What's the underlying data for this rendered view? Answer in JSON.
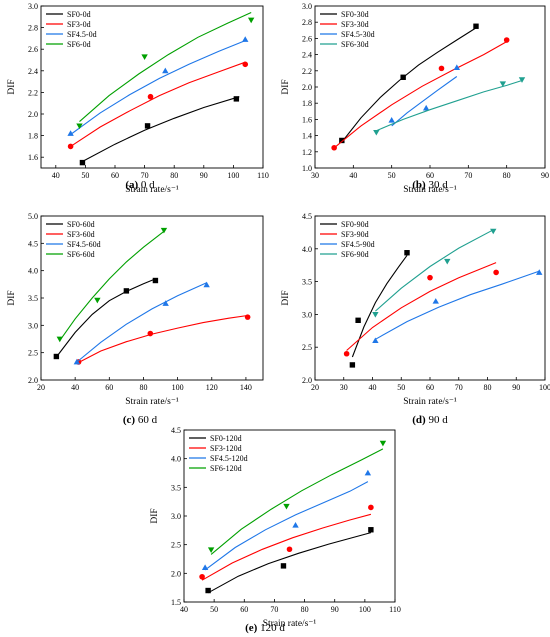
{
  "chart_data": [
    {
      "type": "scatter",
      "caption_label": "(a)",
      "caption_text": "0 d",
      "xlabel": "Strain rate/s⁻¹",
      "ylabel": "DIF",
      "xlim": [
        35,
        110
      ],
      "ylim": [
        1.5,
        3.0
      ],
      "xticks": [
        40,
        50,
        60,
        70,
        80,
        90,
        100,
        110
      ],
      "yticks": [
        1.6,
        1.8,
        2.0,
        2.2,
        2.4,
        2.6,
        2.8,
        3.0
      ],
      "ytick_decimals": 1,
      "legend_position": "top-left",
      "series": [
        {
          "name": "SF0-0d",
          "color": "#000000",
          "marker": "square",
          "points": [
            [
              49,
              1.55
            ],
            [
              71,
              1.89
            ],
            [
              101,
              2.14
            ]
          ],
          "fit": [
            [
              49,
              1.56
            ],
            [
              60,
              1.72
            ],
            [
              70,
              1.85
            ],
            [
              80,
              1.96
            ],
            [
              90,
              2.06
            ],
            [
              102,
              2.16
            ]
          ]
        },
        {
          "name": "SF3-0d",
          "color": "#ff0000",
          "marker": "circle",
          "points": [
            [
              45,
              1.7
            ],
            [
              72,
              2.16
            ],
            [
              104,
              2.46
            ]
          ],
          "fit": [
            [
              45,
              1.7
            ],
            [
              55,
              1.88
            ],
            [
              65,
              2.03
            ],
            [
              75,
              2.17
            ],
            [
              85,
              2.29
            ],
            [
              95,
              2.39
            ],
            [
              104,
              2.48
            ]
          ]
        },
        {
          "name": "SF4.5-0d",
          "color": "#1f77e8",
          "marker": "triangle-up",
          "points": [
            [
              45,
              1.82
            ],
            [
              77,
              2.4
            ],
            [
              104,
              2.69
            ]
          ],
          "fit": [
            [
              45,
              1.81
            ],
            [
              55,
              2.01
            ],
            [
              65,
              2.18
            ],
            [
              75,
              2.33
            ],
            [
              85,
              2.46
            ],
            [
              95,
              2.58
            ],
            [
              104,
              2.68
            ]
          ]
        },
        {
          "name": "SF6-0d",
          "color": "#00a000",
          "marker": "triangle-down",
          "points": [
            [
              48,
              1.89
            ],
            [
              70,
              2.53
            ],
            [
              106,
              2.87
            ]
          ],
          "fit": [
            [
              48,
              1.93
            ],
            [
              58,
              2.17
            ],
            [
              68,
              2.37
            ],
            [
              78,
              2.55
            ],
            [
              88,
              2.71
            ],
            [
              98,
              2.84
            ],
            [
              106,
              2.94
            ]
          ]
        }
      ]
    },
    {
      "type": "scatter",
      "caption_label": "(b)",
      "caption_text": "30 d",
      "xlabel": "Strain rate/s⁻¹",
      "ylabel": "DIF",
      "xlim": [
        30,
        90
      ],
      "ylim": [
        1.0,
        3.0
      ],
      "xticks": [
        30,
        40,
        50,
        60,
        70,
        80,
        90
      ],
      "yticks": [
        1.0,
        1.2,
        1.4,
        1.6,
        1.8,
        2.0,
        2.2,
        2.4,
        2.6,
        2.8,
        3.0
      ],
      "ytick_decimals": 1,
      "legend_position": "top-left",
      "series": [
        {
          "name": "SF0-30d",
          "color": "#000000",
          "marker": "square",
          "points": [
            [
              37,
              1.34
            ],
            [
              53,
              2.12
            ],
            [
              72,
              2.75
            ]
          ],
          "fit": [
            [
              37,
              1.32
            ],
            [
              42,
              1.62
            ],
            [
              47,
              1.87
            ],
            [
              52,
              2.08
            ],
            [
              57,
              2.27
            ],
            [
              62,
              2.43
            ],
            [
              67,
              2.58
            ],
            [
              72,
              2.73
            ]
          ]
        },
        {
          "name": "SF3-30d",
          "color": "#ff0000",
          "marker": "circle",
          "points": [
            [
              35,
              1.25
            ],
            [
              63,
              2.23
            ],
            [
              80,
              2.58
            ]
          ],
          "fit": [
            [
              35,
              1.25
            ],
            [
              42,
              1.52
            ],
            [
              50,
              1.78
            ],
            [
              58,
              2.01
            ],
            [
              66,
              2.21
            ],
            [
              74,
              2.4
            ],
            [
              80,
              2.56
            ]
          ]
        },
        {
          "name": "SF4.5-30d",
          "color": "#1f77e8",
          "marker": "triangle-up",
          "points": [
            [
              50,
              1.59
            ],
            [
              59,
              1.74
            ],
            [
              67,
              2.24
            ]
          ],
          "fit": [
            [
              50,
              1.52
            ],
            [
              54,
              1.68
            ],
            [
              58,
              1.82
            ],
            [
              62,
              1.96
            ],
            [
              67,
              2.13
            ]
          ]
        },
        {
          "name": "SF6-30d",
          "color": "#20a090",
          "marker": "triangle-down",
          "points": [
            [
              46,
              1.44
            ],
            [
              79,
              2.04
            ],
            [
              84,
              2.09
            ]
          ],
          "fit": [
            [
              46,
              1.46
            ],
            [
              53,
              1.6
            ],
            [
              60,
              1.72
            ],
            [
              67,
              1.83
            ],
            [
              74,
              1.94
            ],
            [
              80,
              2.02
            ],
            [
              84,
              2.08
            ]
          ]
        }
      ]
    },
    {
      "type": "scatter",
      "caption_label": "(c)",
      "caption_text": "60 d",
      "xlabel": "Strain rate/s⁻¹",
      "ylabel": "DIF",
      "xlim": [
        20,
        150
      ],
      "ylim": [
        2.0,
        5.0
      ],
      "xticks": [
        20,
        40,
        60,
        80,
        100,
        120,
        140
      ],
      "yticks": [
        2.0,
        2.5,
        3.0,
        3.5,
        4.0,
        4.5,
        5.0
      ],
      "ytick_decimals": 1,
      "legend_position": "top-left",
      "series": [
        {
          "name": "SF0-60d",
          "color": "#000000",
          "marker": "square",
          "points": [
            [
              29,
              2.43
            ],
            [
              70,
              3.63
            ],
            [
              87,
              3.82
            ]
          ],
          "fit": [
            [
              29,
              2.42
            ],
            [
              40,
              2.87
            ],
            [
              50,
              3.2
            ],
            [
              60,
              3.45
            ],
            [
              70,
              3.62
            ],
            [
              80,
              3.76
            ],
            [
              87,
              3.85
            ]
          ]
        },
        {
          "name": "SF3-60d",
          "color": "#ff0000",
          "marker": "circle",
          "points": [
            [
              42,
              2.33
            ],
            [
              84,
              2.85
            ],
            [
              141,
              3.15
            ]
          ],
          "fit": [
            [
              42,
              2.32
            ],
            [
              55,
              2.53
            ],
            [
              70,
              2.7
            ],
            [
              85,
              2.84
            ],
            [
              100,
              2.95
            ],
            [
              115,
              3.05
            ],
            [
              130,
              3.13
            ],
            [
              141,
              3.18
            ]
          ]
        },
        {
          "name": "SF4.5-60d",
          "color": "#1f77e8",
          "marker": "triangle-up",
          "points": [
            [
              41,
              2.33
            ],
            [
              93,
              3.4
            ],
            [
              117,
              3.74
            ]
          ],
          "fit": [
            [
              41,
              2.33
            ],
            [
              55,
              2.69
            ],
            [
              70,
              3.02
            ],
            [
              85,
              3.3
            ],
            [
              100,
              3.54
            ],
            [
              117,
              3.78
            ]
          ]
        },
        {
          "name": "SF6-60d",
          "color": "#00a000",
          "marker": "triangle-down",
          "points": [
            [
              31,
              2.75
            ],
            [
              53,
              3.46
            ],
            [
              92,
              4.74
            ]
          ],
          "fit": [
            [
              31,
              2.72
            ],
            [
              40,
              3.12
            ],
            [
              50,
              3.5
            ],
            [
              60,
              3.85
            ],
            [
              70,
              4.16
            ],
            [
              80,
              4.43
            ],
            [
              92,
              4.72
            ]
          ]
        }
      ]
    },
    {
      "type": "scatter",
      "caption_label": "(d)",
      "caption_text": "90 d",
      "xlabel": "Strain rate/s⁻¹",
      "ylabel": "DIF",
      "xlim": [
        20,
        100
      ],
      "ylim": [
        2.0,
        4.5
      ],
      "xticks": [
        20,
        30,
        40,
        50,
        60,
        70,
        80,
        90,
        100
      ],
      "yticks": [
        2.0,
        2.5,
        3.0,
        3.5,
        4.0,
        4.5
      ],
      "ytick_decimals": 1,
      "legend_position": "top-left",
      "series": [
        {
          "name": "SF0-90d",
          "color": "#000000",
          "marker": "square",
          "points": [
            [
              33,
              2.23
            ],
            [
              35,
              2.91
            ],
            [
              52,
              3.94
            ]
          ],
          "fit": [
            [
              33,
              2.35
            ],
            [
              37,
              2.81
            ],
            [
              41,
              3.18
            ],
            [
              45,
              3.47
            ],
            [
              49,
              3.72
            ],
            [
              52,
              3.9
            ]
          ]
        },
        {
          "name": "SF3-90d",
          "color": "#ff0000",
          "marker": "circle",
          "points": [
            [
              31,
              2.4
            ],
            [
              60,
              3.56
            ],
            [
              83,
              3.64
            ]
          ],
          "fit": [
            [
              31,
              2.45
            ],
            [
              40,
              2.8
            ],
            [
              50,
              3.1
            ],
            [
              60,
              3.35
            ],
            [
              70,
              3.56
            ],
            [
              83,
              3.79
            ]
          ]
        },
        {
          "name": "SF4.5-90d",
          "color": "#1f77e8",
          "marker": "triangle-up",
          "points": [
            [
              41,
              2.6
            ],
            [
              62,
              3.2
            ],
            [
              98,
              3.64
            ]
          ],
          "fit": [
            [
              41,
              2.62
            ],
            [
              52,
              2.89
            ],
            [
              63,
              3.11
            ],
            [
              74,
              3.3
            ],
            [
              85,
              3.46
            ],
            [
              98,
              3.66
            ]
          ]
        },
        {
          "name": "SF6-90d",
          "color": "#20a090",
          "marker": "triangle-down",
          "points": [
            [
              41,
              3.0
            ],
            [
              66,
              3.81
            ],
            [
              82,
              4.27
            ]
          ],
          "fit": [
            [
              41,
              3.05
            ],
            [
              50,
              3.4
            ],
            [
              60,
              3.73
            ],
            [
              70,
              4.01
            ],
            [
              82,
              4.29
            ]
          ]
        }
      ]
    },
    {
      "type": "scatter",
      "caption_label": "(e)",
      "caption_text": "120 d",
      "xlabel": "Strain rate/s⁻¹",
      "ylabel": "DIF",
      "xlim": [
        40,
        110
      ],
      "ylim": [
        1.5,
        4.5
      ],
      "xticks": [
        40,
        50,
        60,
        70,
        80,
        90,
        100,
        110
      ],
      "yticks": [
        1.5,
        2.0,
        2.5,
        3.0,
        3.5,
        4.0,
        4.5
      ],
      "ytick_decimals": 1,
      "legend_position": "top-left",
      "series": [
        {
          "name": "SF0-120d",
          "color": "#000000",
          "marker": "square",
          "points": [
            [
              48,
              1.7
            ],
            [
              73,
              2.13
            ],
            [
              102,
              2.76
            ]
          ],
          "fit": [
            [
              48,
              1.66
            ],
            [
              58,
              1.95
            ],
            [
              68,
              2.17
            ],
            [
              78,
              2.35
            ],
            [
              88,
              2.51
            ],
            [
              102,
              2.71
            ]
          ]
        },
        {
          "name": "SF3-120d",
          "color": "#ff0000",
          "marker": "circle",
          "points": [
            [
              46,
              1.94
            ],
            [
              75,
              2.42
            ],
            [
              102,
              3.15
            ]
          ],
          "fit": [
            [
              46,
              1.88
            ],
            [
              56,
              2.18
            ],
            [
              66,
              2.42
            ],
            [
              76,
              2.62
            ],
            [
              86,
              2.79
            ],
            [
              95,
              2.93
            ],
            [
              102,
              3.03
            ]
          ]
        },
        {
          "name": "SF4.5-120d",
          "color": "#1f77e8",
          "marker": "triangle-up",
          "points": [
            [
              47,
              2.1
            ],
            [
              77,
              2.84
            ],
            [
              101,
              3.75
            ]
          ],
          "fit": [
            [
              47,
              2.06
            ],
            [
              57,
              2.45
            ],
            [
              67,
              2.76
            ],
            [
              77,
              3.02
            ],
            [
              87,
              3.25
            ],
            [
              95,
              3.43
            ],
            [
              101,
              3.6
            ]
          ]
        },
        {
          "name": "SF6-120d",
          "color": "#00a000",
          "marker": "triangle-down",
          "points": [
            [
              49,
              2.41
            ],
            [
              74,
              3.17
            ],
            [
              106,
              4.27
            ]
          ],
          "fit": [
            [
              49,
              2.33
            ],
            [
              59,
              2.77
            ],
            [
              69,
              3.12
            ],
            [
              79,
              3.44
            ],
            [
              89,
              3.72
            ],
            [
              99,
              3.98
            ],
            [
              106,
              4.17
            ]
          ]
        }
      ]
    }
  ]
}
